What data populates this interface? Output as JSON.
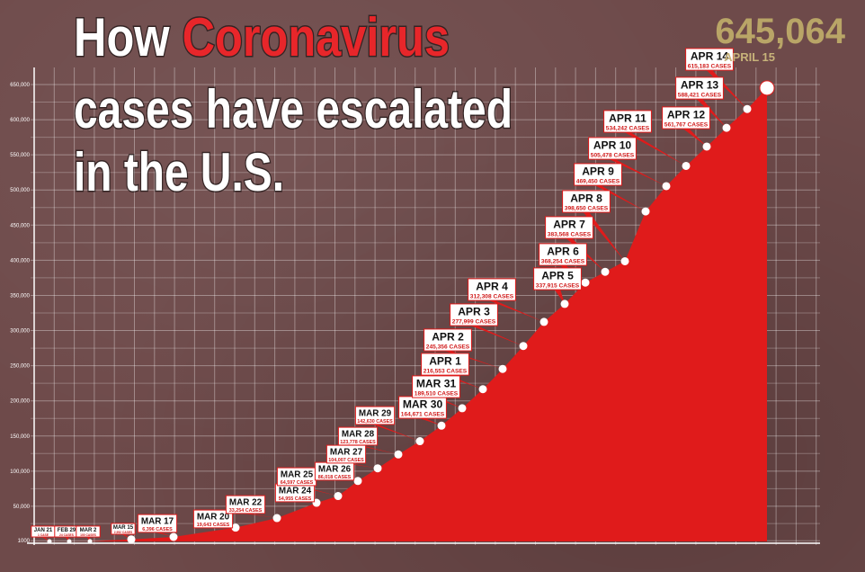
{
  "chart_data": {
    "type": "area",
    "title_parts": [
      {
        "text": "How ",
        "color": "#ffffff",
        "line": 0
      },
      {
        "text": "Coronavirus",
        "color": "#e8262a",
        "line": 0
      },
      {
        "text": "cases have escalated",
        "color": "#ffffff",
        "line": 1
      },
      {
        "text": "in the U.S.",
        "color": "#ffffff",
        "line": 2
      }
    ],
    "headline_total": "645,064",
    "headline_date": "APRIL 15",
    "ylim": [
      0,
      650000
    ],
    "y_ticks": [
      1000,
      50000,
      100000,
      150000,
      200000,
      250000,
      300000,
      350000,
      400000,
      450000,
      500000,
      550000,
      600000,
      650000
    ],
    "y_tick_labels": [
      "1000",
      "50,000",
      "100,000",
      "150,000",
      "200,000",
      "250,000",
      "300,000",
      "350,000",
      "400,000",
      "450,000",
      "500,000",
      "550,000",
      "600,000",
      "650,000"
    ],
    "fill_color": "#e01b1b",
    "points": [
      {
        "date": "JAN 21",
        "cases": 1,
        "label": "JAN 21",
        "sub": "1 CASE"
      },
      {
        "date": "FEB 29",
        "cases": 24,
        "label": "FEB 29",
        "sub": "24 CASES"
      },
      {
        "date": "MAR 2",
        "cases": 100,
        "label": "MAR 2",
        "sub": "100 CASES"
      },
      {
        "date": "MAR 15",
        "cases": 2952,
        "label": "MAR 15",
        "sub": "2,952 CASES"
      },
      {
        "date": "MAR 17",
        "cases": 6396,
        "label": "MAR 17",
        "sub": "6,396 CASES"
      },
      {
        "date": "MAR 20",
        "cases": 19643,
        "label": "MAR 20",
        "sub": "19,643 CASES"
      },
      {
        "date": "MAR 22",
        "cases": 33254,
        "label": "MAR 22",
        "sub": "33,254 CASES"
      },
      {
        "date": "MAR 24",
        "cases": 54955,
        "label": "MAR 24",
        "sub": "54,955 CASES"
      },
      {
        "date": "MAR 25",
        "cases": 64597,
        "label": "MAR 25",
        "sub": "64,597 CASES"
      },
      {
        "date": "MAR 26",
        "cases": 86018,
        "label": "MAR 26",
        "sub": "86,018 CASES"
      },
      {
        "date": "MAR 27",
        "cases": 104007,
        "label": "MAR 27",
        "sub": "104,007 CASES"
      },
      {
        "date": "MAR 28",
        "cases": 123778,
        "label": "MAR 28",
        "sub": "123,778 CASES"
      },
      {
        "date": "MAR 29",
        "cases": 142630,
        "label": "MAR 29",
        "sub": "142,630 CASES"
      },
      {
        "date": "MAR 30",
        "cases": 164671,
        "label": "MAR 30",
        "sub": "164,671 CASES"
      },
      {
        "date": "MAR 31",
        "cases": 189510,
        "label": "MAR 31",
        "sub": "189,510 CASES"
      },
      {
        "date": "APR 1",
        "cases": 216553,
        "label": "APR 1",
        "sub": "216,553 CASES"
      },
      {
        "date": "APR 2",
        "cases": 245356,
        "label": "APR 2",
        "sub": "245,356 CASES"
      },
      {
        "date": "APR 3",
        "cases": 277999,
        "label": "APR 3",
        "sub": "277,999 CASES"
      },
      {
        "date": "APR 4",
        "cases": 312308,
        "label": "APR 4",
        "sub": "312,308 CASES"
      },
      {
        "date": "APR 5",
        "cases": 337915,
        "label": "APR 5",
        "sub": "337,915 CASES"
      },
      {
        "date": "APR 6",
        "cases": 368254,
        "label": "APR 6",
        "sub": "368,254 CASES"
      },
      {
        "date": "APR 7",
        "cases": 383568,
        "label": "APR 7",
        "sub": "383,568 CASES"
      },
      {
        "date": "APR 8",
        "cases": 398650,
        "label": "APR 8",
        "sub": "398,650 CASES"
      },
      {
        "date": "APR 9",
        "cases": 469450,
        "label": "APR 9",
        "sub": "469,450 CASES"
      },
      {
        "date": "APR 10",
        "cases": 505478,
        "label": "APR 10",
        "sub": "505,478 CASES"
      },
      {
        "date": "APR 11",
        "cases": 534242,
        "label": "APR 11",
        "sub": "534,242 CASES"
      },
      {
        "date": "APR 12",
        "cases": 561767,
        "label": "APR 12",
        "sub": "561,767 CASES"
      },
      {
        "date": "APR 13",
        "cases": 588421,
        "label": "APR 13",
        "sub": "588,421 CASES"
      },
      {
        "date": "APR 14",
        "cases": 615183,
        "label": "APR 14",
        "sub": "615,183 CASES"
      },
      {
        "date": "APRIL 15",
        "cases": 645064,
        "label": "",
        "sub": ""
      }
    ]
  }
}
